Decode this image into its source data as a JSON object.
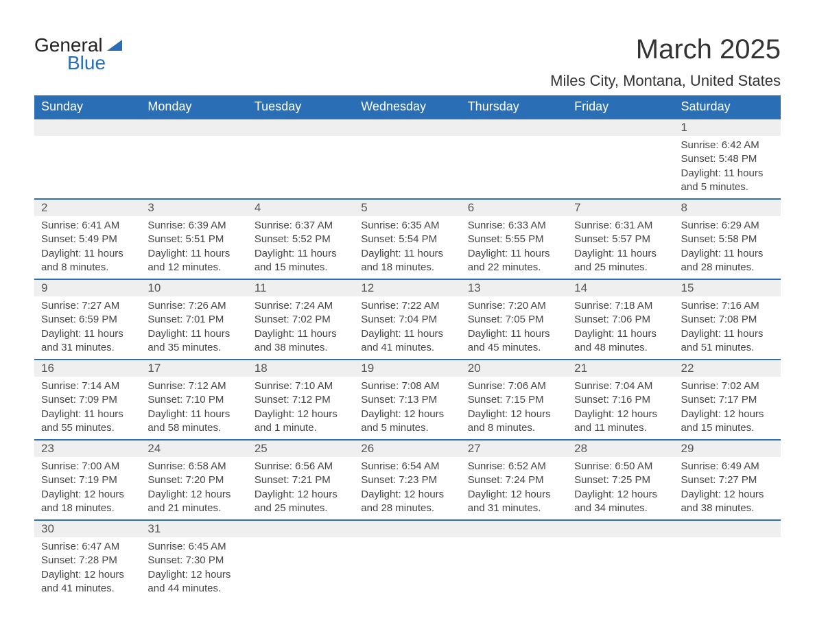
{
  "logo": {
    "line1": "General",
    "line2": "Blue"
  },
  "title": "March 2025",
  "location": "Miles City, Montana, United States",
  "colors": {
    "header_bg": "#2a6fb5",
    "row_alt_bg": "#efefef",
    "text": "#444444",
    "page_bg": "#ffffff"
  },
  "day_headers": [
    "Sunday",
    "Monday",
    "Tuesday",
    "Wednesday",
    "Thursday",
    "Friday",
    "Saturday"
  ],
  "weeks": [
    [
      null,
      null,
      null,
      null,
      null,
      null,
      {
        "n": "1",
        "sunrise": "Sunrise: 6:42 AM",
        "sunset": "Sunset: 5:48 PM",
        "day1": "Daylight: 11 hours",
        "day2": "and 5 minutes."
      }
    ],
    [
      {
        "n": "2",
        "sunrise": "Sunrise: 6:41 AM",
        "sunset": "Sunset: 5:49 PM",
        "day1": "Daylight: 11 hours",
        "day2": "and 8 minutes."
      },
      {
        "n": "3",
        "sunrise": "Sunrise: 6:39 AM",
        "sunset": "Sunset: 5:51 PM",
        "day1": "Daylight: 11 hours",
        "day2": "and 12 minutes."
      },
      {
        "n": "4",
        "sunrise": "Sunrise: 6:37 AM",
        "sunset": "Sunset: 5:52 PM",
        "day1": "Daylight: 11 hours",
        "day2": "and 15 minutes."
      },
      {
        "n": "5",
        "sunrise": "Sunrise: 6:35 AM",
        "sunset": "Sunset: 5:54 PM",
        "day1": "Daylight: 11 hours",
        "day2": "and 18 minutes."
      },
      {
        "n": "6",
        "sunrise": "Sunrise: 6:33 AM",
        "sunset": "Sunset: 5:55 PM",
        "day1": "Daylight: 11 hours",
        "day2": "and 22 minutes."
      },
      {
        "n": "7",
        "sunrise": "Sunrise: 6:31 AM",
        "sunset": "Sunset: 5:57 PM",
        "day1": "Daylight: 11 hours",
        "day2": "and 25 minutes."
      },
      {
        "n": "8",
        "sunrise": "Sunrise: 6:29 AM",
        "sunset": "Sunset: 5:58 PM",
        "day1": "Daylight: 11 hours",
        "day2": "and 28 minutes."
      }
    ],
    [
      {
        "n": "9",
        "sunrise": "Sunrise: 7:27 AM",
        "sunset": "Sunset: 6:59 PM",
        "day1": "Daylight: 11 hours",
        "day2": "and 31 minutes."
      },
      {
        "n": "10",
        "sunrise": "Sunrise: 7:26 AM",
        "sunset": "Sunset: 7:01 PM",
        "day1": "Daylight: 11 hours",
        "day2": "and 35 minutes."
      },
      {
        "n": "11",
        "sunrise": "Sunrise: 7:24 AM",
        "sunset": "Sunset: 7:02 PM",
        "day1": "Daylight: 11 hours",
        "day2": "and 38 minutes."
      },
      {
        "n": "12",
        "sunrise": "Sunrise: 7:22 AM",
        "sunset": "Sunset: 7:04 PM",
        "day1": "Daylight: 11 hours",
        "day2": "and 41 minutes."
      },
      {
        "n": "13",
        "sunrise": "Sunrise: 7:20 AM",
        "sunset": "Sunset: 7:05 PM",
        "day1": "Daylight: 11 hours",
        "day2": "and 45 minutes."
      },
      {
        "n": "14",
        "sunrise": "Sunrise: 7:18 AM",
        "sunset": "Sunset: 7:06 PM",
        "day1": "Daylight: 11 hours",
        "day2": "and 48 minutes."
      },
      {
        "n": "15",
        "sunrise": "Sunrise: 7:16 AM",
        "sunset": "Sunset: 7:08 PM",
        "day1": "Daylight: 11 hours",
        "day2": "and 51 minutes."
      }
    ],
    [
      {
        "n": "16",
        "sunrise": "Sunrise: 7:14 AM",
        "sunset": "Sunset: 7:09 PM",
        "day1": "Daylight: 11 hours",
        "day2": "and 55 minutes."
      },
      {
        "n": "17",
        "sunrise": "Sunrise: 7:12 AM",
        "sunset": "Sunset: 7:10 PM",
        "day1": "Daylight: 11 hours",
        "day2": "and 58 minutes."
      },
      {
        "n": "18",
        "sunrise": "Sunrise: 7:10 AM",
        "sunset": "Sunset: 7:12 PM",
        "day1": "Daylight: 12 hours",
        "day2": "and 1 minute."
      },
      {
        "n": "19",
        "sunrise": "Sunrise: 7:08 AM",
        "sunset": "Sunset: 7:13 PM",
        "day1": "Daylight: 12 hours",
        "day2": "and 5 minutes."
      },
      {
        "n": "20",
        "sunrise": "Sunrise: 7:06 AM",
        "sunset": "Sunset: 7:15 PM",
        "day1": "Daylight: 12 hours",
        "day2": "and 8 minutes."
      },
      {
        "n": "21",
        "sunrise": "Sunrise: 7:04 AM",
        "sunset": "Sunset: 7:16 PM",
        "day1": "Daylight: 12 hours",
        "day2": "and 11 minutes."
      },
      {
        "n": "22",
        "sunrise": "Sunrise: 7:02 AM",
        "sunset": "Sunset: 7:17 PM",
        "day1": "Daylight: 12 hours",
        "day2": "and 15 minutes."
      }
    ],
    [
      {
        "n": "23",
        "sunrise": "Sunrise: 7:00 AM",
        "sunset": "Sunset: 7:19 PM",
        "day1": "Daylight: 12 hours",
        "day2": "and 18 minutes."
      },
      {
        "n": "24",
        "sunrise": "Sunrise: 6:58 AM",
        "sunset": "Sunset: 7:20 PM",
        "day1": "Daylight: 12 hours",
        "day2": "and 21 minutes."
      },
      {
        "n": "25",
        "sunrise": "Sunrise: 6:56 AM",
        "sunset": "Sunset: 7:21 PM",
        "day1": "Daylight: 12 hours",
        "day2": "and 25 minutes."
      },
      {
        "n": "26",
        "sunrise": "Sunrise: 6:54 AM",
        "sunset": "Sunset: 7:23 PM",
        "day1": "Daylight: 12 hours",
        "day2": "and 28 minutes."
      },
      {
        "n": "27",
        "sunrise": "Sunrise: 6:52 AM",
        "sunset": "Sunset: 7:24 PM",
        "day1": "Daylight: 12 hours",
        "day2": "and 31 minutes."
      },
      {
        "n": "28",
        "sunrise": "Sunrise: 6:50 AM",
        "sunset": "Sunset: 7:25 PM",
        "day1": "Daylight: 12 hours",
        "day2": "and 34 minutes."
      },
      {
        "n": "29",
        "sunrise": "Sunrise: 6:49 AM",
        "sunset": "Sunset: 7:27 PM",
        "day1": "Daylight: 12 hours",
        "day2": "and 38 minutes."
      }
    ],
    [
      {
        "n": "30",
        "sunrise": "Sunrise: 6:47 AM",
        "sunset": "Sunset: 7:28 PM",
        "day1": "Daylight: 12 hours",
        "day2": "and 41 minutes."
      },
      {
        "n": "31",
        "sunrise": "Sunrise: 6:45 AM",
        "sunset": "Sunset: 7:30 PM",
        "day1": "Daylight: 12 hours",
        "day2": "and 44 minutes."
      },
      null,
      null,
      null,
      null,
      null
    ]
  ]
}
